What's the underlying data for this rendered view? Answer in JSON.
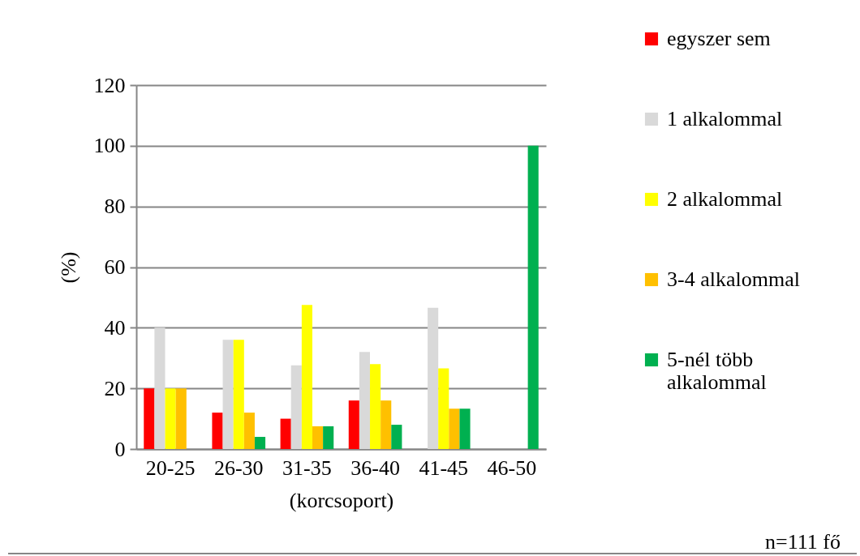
{
  "chart_data": {
    "type": "bar",
    "xlabel": "(korcsoport)",
    "ylabel": "(%)",
    "categories": [
      "20-25",
      "26-30",
      "31-35",
      "36-40",
      "41-45",
      "46-50"
    ],
    "series": [
      {
        "name": "egyszer sem",
        "color": "#ff0000",
        "values": [
          20,
          12,
          10,
          16,
          null,
          null
        ]
      },
      {
        "name": "1 alkalommal",
        "color": "#d9d9d9",
        "values": [
          40,
          36,
          27.6,
          32,
          46.6,
          null
        ]
      },
      {
        "name": "2 alkalommal",
        "color": "#ffff00",
        "values": [
          20,
          36,
          47.5,
          28,
          26.6,
          null
        ]
      },
      {
        "name": "3-4 alkalommal",
        "color": "#ffc000",
        "values": [
          20,
          12,
          7.5,
          16,
          13.3,
          null
        ]
      },
      {
        "name": "5-nél több alkalommal",
        "color": "#00b050",
        "values": [
          null,
          4,
          7.5,
          8,
          13.3,
          100
        ]
      }
    ],
    "ylim": [
      0,
      120
    ],
    "yticks": [
      0,
      20,
      40,
      60,
      80,
      100,
      120
    ],
    "grid": "y",
    "legend": "right",
    "annotations": [
      "n=111 fő"
    ]
  }
}
